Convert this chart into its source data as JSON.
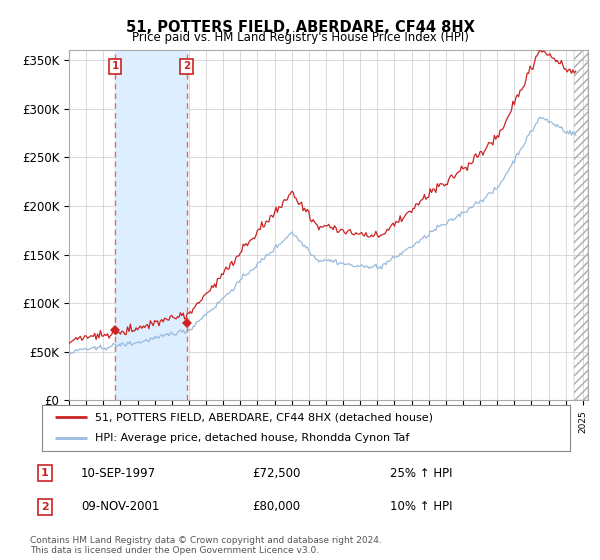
{
  "title": "51, POTTERS FIELD, ABERDARE, CF44 8HX",
  "subtitle": "Price paid vs. HM Land Registry's House Price Index (HPI)",
  "legend_line1": "51, POTTERS FIELD, ABERDARE, CF44 8HX (detached house)",
  "legend_line2": "HPI: Average price, detached house, Rhondda Cynon Taf",
  "purchase1_date": "10-SEP-1997",
  "purchase1_price": 72500,
  "purchase1_hpi_note": "25% ↑ HPI",
  "purchase2_date": "09-NOV-2001",
  "purchase2_price": 80000,
  "purchase2_hpi_note": "10% ↑ HPI",
  "footer1": "Contains HM Land Registry data © Crown copyright and database right 2024.",
  "footer2": "This data is licensed under the Open Government Licence v3.0.",
  "hpi_color": "#99bbdd",
  "price_color": "#cc2222",
  "vline_color": "#ee6666",
  "box_color": "#cc2222",
  "span_color": "#ddeeff",
  "purchase1_x": 1997.7,
  "purchase2_x": 2001.87,
  "xlim": [
    1995.0,
    2025.3
  ],
  "ylim": [
    0,
    360000
  ],
  "yticks": [
    0,
    50000,
    100000,
    150000,
    200000,
    250000,
    300000,
    350000
  ],
  "ytick_labels": [
    "£0",
    "£50K",
    "£100K",
    "£150K",
    "£200K",
    "£250K",
    "£300K",
    "£350K"
  ],
  "xticks": [
    1995,
    1996,
    1997,
    1998,
    1999,
    2000,
    2001,
    2002,
    2003,
    2004,
    2005,
    2006,
    2007,
    2008,
    2009,
    2010,
    2011,
    2012,
    2013,
    2014,
    2015,
    2016,
    2017,
    2018,
    2019,
    2020,
    2021,
    2022,
    2023,
    2024,
    2025
  ]
}
